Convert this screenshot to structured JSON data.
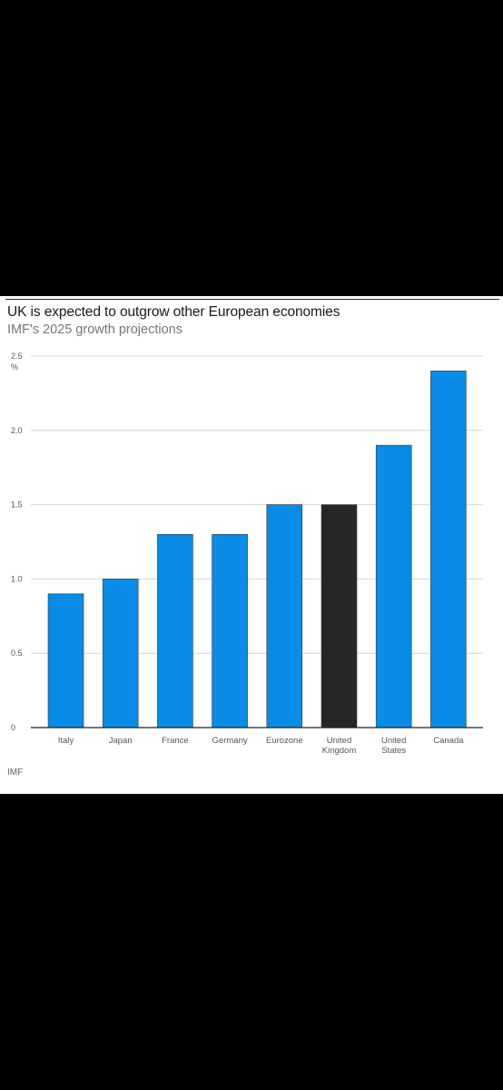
{
  "header": {
    "title": "UK is expected to outgrow other European economies",
    "subtitle": "IMF's 2025 growth projections",
    "unit": "%"
  },
  "footer": {
    "source": "IMF"
  },
  "colors": {
    "bar": "#0a8be5",
    "highlight": "#262626",
    "grid": "#d6d6d6",
    "axis": "#222222"
  },
  "chart_data": {
    "type": "bar",
    "title": "UK is expected to outgrow other European economies",
    "subtitle": "IMF's 2025 growth projections",
    "ylabel": "%",
    "xlabel": "",
    "ylim": [
      0,
      2.5
    ],
    "yticks": [
      "0",
      "0.5",
      "1.0",
      "1.5",
      "2.0",
      "2.5"
    ],
    "grid": true,
    "highlight_category": "United Kingdom",
    "categories": [
      "Italy",
      "Japan",
      "France",
      "Germany",
      "Eurozone",
      "United Kingdom",
      "United States",
      "Canada"
    ],
    "category_labels": [
      [
        "Italy"
      ],
      [
        "Japan"
      ],
      [
        "France"
      ],
      [
        "Germany"
      ],
      [
        "Eurozone"
      ],
      [
        "United",
        "Kingdom"
      ],
      [
        "United",
        "States"
      ],
      [
        "Canada"
      ]
    ],
    "values": [
      0.9,
      1.0,
      1.3,
      1.3,
      1.5,
      1.5,
      1.9,
      2.4
    ]
  }
}
